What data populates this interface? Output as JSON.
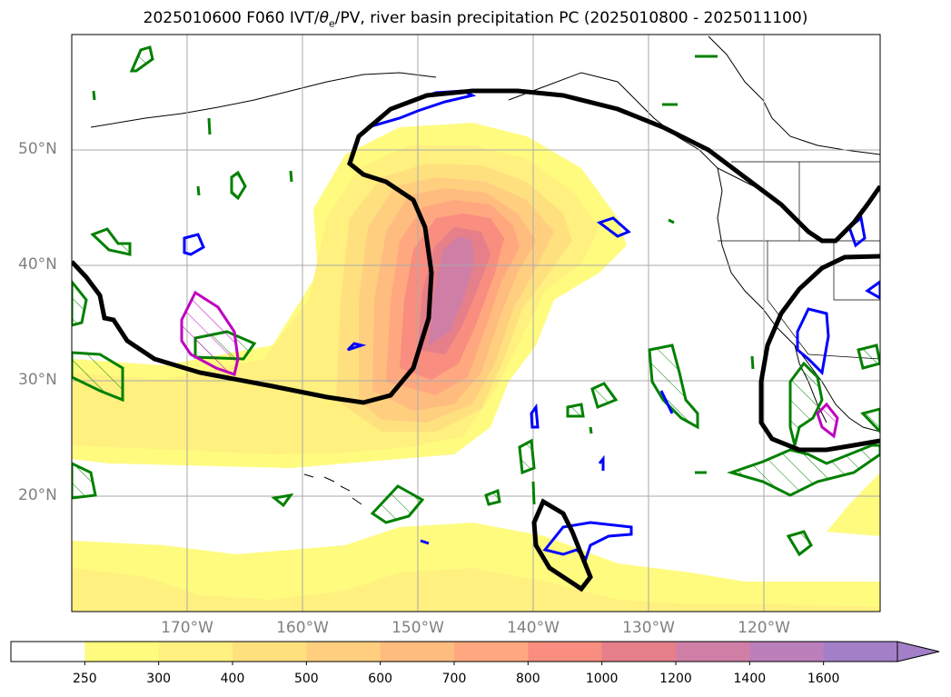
{
  "title": "2025010600 F060 IVT/θe/PV, river basin precipitation PC (2025010800 - 2025011100)",
  "title_parts": {
    "prefix": "2025010600 F060 IVT/",
    "theta": "θ",
    "sub": "e",
    "suffix": "/PV, river basin precipitation PC (2025010800 - 2025011100)"
  },
  "lat_labels": [
    "50°N",
    "40°N",
    "30°N",
    "20°N"
  ],
  "lon_labels": [
    "170°W",
    "160°W",
    "150°W",
    "140°W",
    "130°W",
    "120°W"
  ],
  "colorbar": {
    "ticks": [
      "250",
      "300",
      "400",
      "500",
      "600",
      "700",
      "800",
      "1000",
      "1200",
      "1400",
      "1600"
    ],
    "colors": [
      "#ffffff",
      "#fffb7f",
      "#fff07f",
      "#ffe07f",
      "#ffcf7f",
      "#ffbc7f",
      "#ffa87f",
      "#f98d7f",
      "#e57f8a",
      "#cf7fa6",
      "#bb7fbb",
      "#a37fc8"
    ],
    "extend": "max"
  },
  "legend_colors": {
    "ivt_fill": "#ffe07f",
    "theta_e": "#000000",
    "pv_green": "#008000",
    "pv_blue": "#0000ff",
    "pv_magenta": "#bf00bf",
    "coast": "#000000",
    "grid": "#aaaaaa"
  }
}
